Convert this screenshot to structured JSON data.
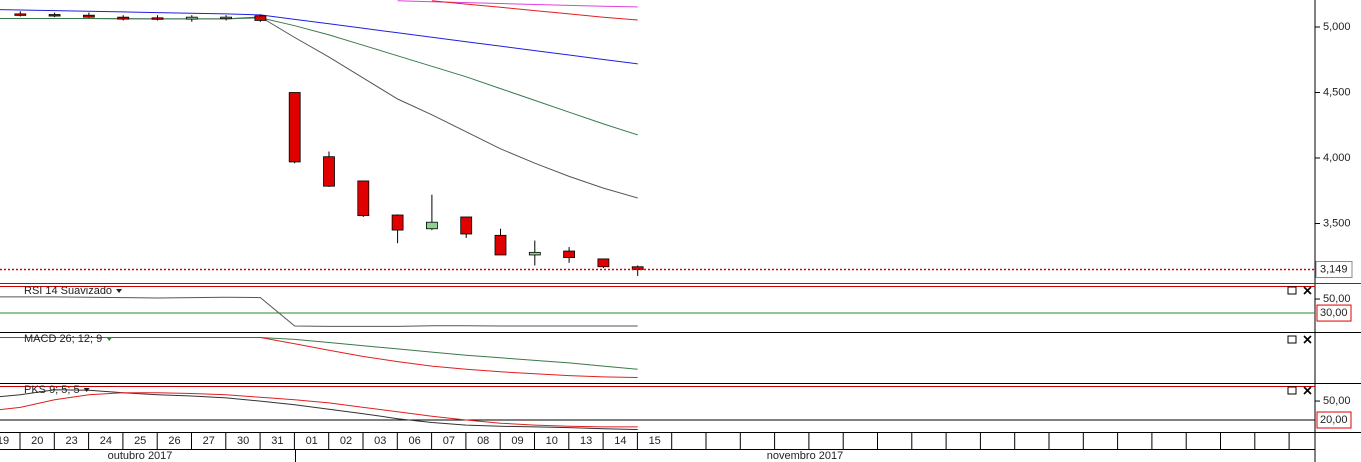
{
  "chart_data": [
    {
      "type": "candlestick",
      "categories": [
        "19",
        "20",
        "23",
        "24",
        "25",
        "26",
        "27",
        "30",
        "31",
        "01",
        "02",
        "03",
        "06",
        "07",
        "08",
        "09",
        "10",
        "13",
        "14",
        "15"
      ],
      "months": [
        "outubro 2017",
        "novembro 2017"
      ],
      "open": [
        null,
        5100,
        5095,
        5090,
        5075,
        5070,
        5060,
        5070,
        5085,
        4500,
        4010,
        3825,
        3565,
        3460,
        3550,
        3410,
        3260,
        3290,
        3230,
        3170
      ],
      "high": [
        null,
        5120,
        5110,
        5110,
        5090,
        5090,
        5090,
        5090,
        5095,
        4500,
        4050,
        3825,
        3570,
        3720,
        3550,
        3460,
        3370,
        3320,
        3230,
        3180
      ],
      "low": [
        null,
        5080,
        5075,
        5070,
        5050,
        5050,
        5040,
        5050,
        5040,
        3960,
        3780,
        3550,
        3350,
        3450,
        3390,
        3260,
        3180,
        3200,
        3160,
        3100
      ],
      "close": [
        null,
        5090,
        5085,
        5075,
        5060,
        5060,
        5075,
        5075,
        5050,
        3970,
        3785,
        3560,
        3450,
        3510,
        3420,
        3260,
        3280,
        3240,
        3170,
        3149
      ],
      "up_color": "#90d090",
      "down_color": "#e00000",
      "overlays": [
        {
          "color": "#555555",
          "values": [
            5065,
            5065,
            5065,
            5065,
            5063,
            5062,
            5062,
            5062,
            5076,
            4920,
            4770,
            4610,
            4450,
            4330,
            4200,
            4070,
            3960,
            3860,
            3770,
            3695
          ]
        },
        {
          "color": "#3a7a4a",
          "values": [
            5065,
            5065,
            5065,
            5065,
            5063,
            5062,
            5062,
            5062,
            5070,
            5010,
            4940,
            4860,
            4780,
            4700,
            4620,
            4530,
            4440,
            4350,
            4260,
            4176
          ]
        },
        {
          "color": "#2020e0",
          "values": [
            5135,
            5130,
            5125,
            5120,
            5115,
            5110,
            5105,
            5100,
            5092,
            5058,
            5024,
            4990,
            4956,
            4922,
            4888,
            4854,
            4820,
            4786,
            4752,
            4718
          ]
        },
        {
          "color": "#e040e0",
          "values": [
            null,
            null,
            null,
            null,
            null,
            null,
            null,
            null,
            null,
            null,
            null,
            null,
            5200,
            5193,
            5186,
            5179,
            5172,
            5165,
            5158,
            5153
          ]
        },
        {
          "color": "#e02020",
          "values": [
            null,
            null,
            null,
            null,
            null,
            null,
            null,
            null,
            null,
            null,
            null,
            null,
            null,
            5200,
            5175,
            5150,
            5125,
            5100,
            5075,
            5053
          ]
        }
      ],
      "ylim": [
        3046,
        5206
      ],
      "yticks": [
        {
          "value": 5000,
          "label": "5,000"
        },
        {
          "value": 4500,
          "label": "4,500"
        },
        {
          "value": 4000,
          "label": "4,000"
        },
        {
          "value": 3500,
          "label": "3,500"
        }
      ],
      "last_price": {
        "value": 3149,
        "label": "3,149"
      }
    },
    {
      "type": "line",
      "title": "RSI 14 Suavizado",
      "ylim": [
        3,
        70
      ],
      "yticks": [
        {
          "value": 50,
          "label": "50,00"
        }
      ],
      "level": {
        "value": 30,
        "label": "30,00"
      },
      "series": [
        {
          "color": "#555555",
          "values": [
            53,
            53,
            53,
            52.5,
            52,
            51.5,
            52,
            52.5,
            52,
            11.5,
            11,
            11,
            11,
            12,
            11.8,
            11.5,
            11.5,
            11.5,
            11.5,
            11.5
          ]
        }
      ]
    },
    {
      "type": "line",
      "title": "MACD 26; 12; 9",
      "title_color": "#2a8a2a",
      "ylim": [
        -0.7,
        0.07
      ],
      "series": [
        {
          "color": "#3a7a4a",
          "values": [
            0,
            0,
            0,
            0,
            0,
            0,
            0,
            0,
            0,
            -0.03,
            -0.08,
            -0.13,
            -0.18,
            -0.23,
            -0.28,
            -0.32,
            -0.36,
            -0.4,
            -0.45,
            -0.5
          ]
        },
        {
          "color": "#e02020",
          "values": [
            0,
            0,
            0,
            0,
            0,
            0,
            0,
            0,
            0,
            -0.1,
            -0.2,
            -0.3,
            -0.38,
            -0.45,
            -0.5,
            -0.54,
            -0.57,
            -0.6,
            -0.62,
            -0.63
          ]
        }
      ]
    },
    {
      "type": "line",
      "title": "PKS 9; 5; 5",
      "ylim": [
        1,
        77
      ],
      "yticks": [
        {
          "value": 50,
          "label": "50,00"
        }
      ],
      "level": {
        "value": 20,
        "label": "20,00"
      },
      "series": [
        {
          "color": "#333333",
          "values": [
            55,
            60,
            68,
            67,
            63,
            60,
            58,
            55,
            50,
            44,
            37,
            30,
            22,
            16,
            12,
            10,
            9,
            8,
            6,
            5
          ]
        },
        {
          "color": "#e02020",
          "values": [
            34,
            40,
            52,
            60,
            63,
            63,
            62,
            60,
            56,
            52,
            47,
            40,
            33,
            26,
            20,
            15,
            12,
            10,
            9,
            9
          ]
        }
      ]
    }
  ]
}
